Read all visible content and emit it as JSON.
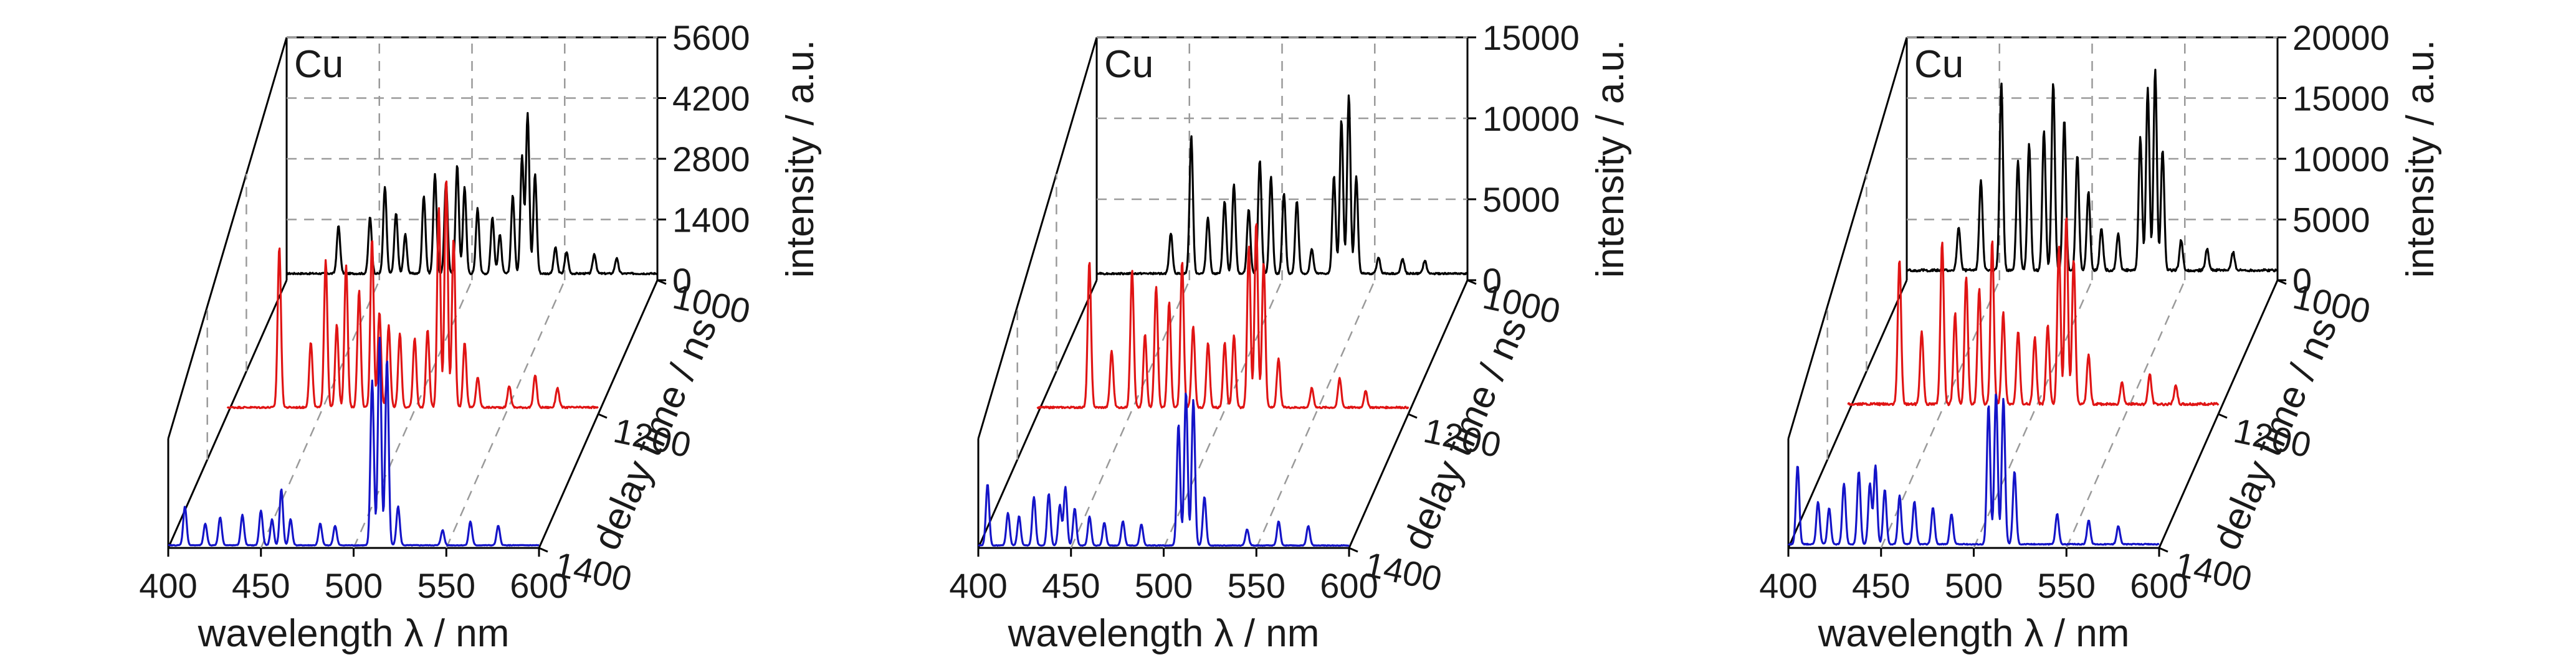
{
  "figure": {
    "background": "#ffffff",
    "axis_color": "#000000",
    "grid_color": "#9a9a9a"
  },
  "chart_data": [
    {
      "type": "line",
      "title": "Cu",
      "xlabel": "wavelength λ / nm",
      "ylabel": "intensity / a.u.",
      "zlabel": "delay time / ns",
      "xlim": [
        400,
        600
      ],
      "ylim": [
        0,
        5600
      ],
      "x_ticks": [
        "400",
        "450",
        "500",
        "550",
        "600"
      ],
      "y_ticks": [
        "0",
        "1400",
        "2800",
        "4200",
        "5600"
      ],
      "z_ticks": [
        "1000",
        "1200",
        "1400"
      ],
      "grid": true,
      "series": [
        {
          "delay": 1000,
          "color": "#000000",
          "baseline": 150,
          "peaks": [
            [
              428,
              1100
            ],
            [
              445,
              1300
            ],
            [
              453,
              2000
            ],
            [
              459,
              1400
            ],
            [
              464,
              900
            ],
            [
              474,
              1800
            ],
            [
              480,
              2300
            ],
            [
              486,
              2100
            ],
            [
              492,
              2500
            ],
            [
              496,
              2000
            ],
            [
              503,
              1500
            ],
            [
              511,
              1300
            ],
            [
              515,
              900
            ],
            [
              522,
              1800
            ],
            [
              527,
              2700
            ],
            [
              530,
              3700
            ],
            [
              534,
              2300
            ],
            [
              545,
              600
            ],
            [
              551,
              500
            ],
            [
              566,
              450
            ],
            [
              578,
              350
            ]
          ]
        },
        {
          "delay": 1200,
          "color": "#e01414",
          "baseline": 150,
          "peaks": [
            [
              428,
              3700
            ],
            [
              445,
              1500
            ],
            [
              453,
              3400
            ],
            [
              459,
              1900
            ],
            [
              464,
              3300
            ],
            [
              471,
              2700
            ],
            [
              478,
              3900
            ],
            [
              482,
              2200
            ],
            [
              487,
              1900
            ],
            [
              493,
              1700
            ],
            [
              501,
              1600
            ],
            [
              508,
              1800
            ],
            [
              514,
              4600
            ],
            [
              518,
              5300
            ],
            [
              522,
              3900
            ],
            [
              528,
              1500
            ],
            [
              535,
              700
            ],
            [
              552,
              500
            ],
            [
              566,
              750
            ],
            [
              578,
              450
            ]
          ]
        },
        {
          "delay": 1400,
          "color": "#1414c8",
          "baseline": 60,
          "peaks": [
            [
              409,
              900
            ],
            [
              420,
              500
            ],
            [
              428,
              650
            ],
            [
              440,
              700
            ],
            [
              450,
              800
            ],
            [
              456,
              600
            ],
            [
              461,
              1300
            ],
            [
              466,
              600
            ],
            [
              482,
              500
            ],
            [
              490,
              450
            ],
            [
              510,
              3800
            ],
            [
              514,
              4800
            ],
            [
              518,
              4300
            ],
            [
              524,
              900
            ],
            [
              548,
              350
            ],
            [
              563,
              550
            ],
            [
              578,
              450
            ]
          ]
        }
      ]
    },
    {
      "type": "line",
      "title": "Cu",
      "xlabel": "wavelength λ / nm",
      "ylabel": "intensity / a.u.",
      "zlabel": "delay time / ns",
      "xlim": [
        400,
        600
      ],
      "ylim": [
        0,
        15000
      ],
      "x_ticks": [
        "400",
        "450",
        "500",
        "550",
        "600"
      ],
      "y_ticks": [
        "0",
        "5000",
        "10000",
        "15000"
      ],
      "z_ticks": [
        "1000",
        "1200",
        "1400"
      ],
      "grid": true,
      "series": [
        {
          "delay": 1000,
          "color": "#000000",
          "baseline": 400,
          "peaks": [
            [
              440,
              2500
            ],
            [
              451,
              8500
            ],
            [
              460,
              3500
            ],
            [
              469,
              4500
            ],
            [
              474,
              5500
            ],
            [
              482,
              4000
            ],
            [
              488,
              7000
            ],
            [
              494,
              6000
            ],
            [
              501,
              5000
            ],
            [
              508,
              4500
            ],
            [
              516,
              1500
            ],
            [
              528,
              6000
            ],
            [
              532,
              9500
            ],
            [
              536,
              11000
            ],
            [
              540,
              6000
            ],
            [
              552,
              1000
            ],
            [
              565,
              900
            ],
            [
              577,
              800
            ]
          ]
        },
        {
          "delay": 1200,
          "color": "#e01414",
          "baseline": 400,
          "peaks": [
            [
              428,
              9000
            ],
            [
              440,
              3500
            ],
            [
              451,
              8500
            ],
            [
              458,
              4500
            ],
            [
              464,
              7500
            ],
            [
              471,
              6500
            ],
            [
              478,
              9000
            ],
            [
              484,
              5000
            ],
            [
              492,
              4000
            ],
            [
              501,
              4000
            ],
            [
              506,
              4500
            ],
            [
              514,
              10000
            ],
            [
              518,
              11500
            ],
            [
              522,
              9000
            ],
            [
              530,
              3000
            ],
            [
              548,
              1200
            ],
            [
              563,
              1800
            ],
            [
              577,
              1000
            ]
          ]
        },
        {
          "delay": 1400,
          "color": "#1414c8",
          "baseline": 150,
          "peaks": [
            [
              405,
              3800
            ],
            [
              416,
              2000
            ],
            [
              422,
              1800
            ],
            [
              430,
              3000
            ],
            [
              438,
              3200
            ],
            [
              444,
              2500
            ],
            [
              447,
              3600
            ],
            [
              452,
              2300
            ],
            [
              460,
              1800
            ],
            [
              468,
              1400
            ],
            [
              478,
              1500
            ],
            [
              488,
              1300
            ],
            [
              508,
              7500
            ],
            [
              512,
              9500
            ],
            [
              516,
              9000
            ],
            [
              522,
              3000
            ],
            [
              545,
              1000
            ],
            [
              562,
              1500
            ],
            [
              578,
              1200
            ]
          ]
        }
      ]
    },
    {
      "type": "line",
      "title": "Cu",
      "xlabel": "wavelength λ / nm",
      "ylabel": "intensity / a.u.",
      "zlabel": "delay time / ns",
      "xlim": [
        400,
        600
      ],
      "ylim": [
        0,
        20000
      ],
      "x_ticks": [
        "400",
        "450",
        "500",
        "550",
        "600"
      ],
      "y_ticks": [
        "0",
        "5000",
        "10000",
        "15000",
        "20000"
      ],
      "z_ticks": [
        "1000",
        "1200",
        "1400"
      ],
      "grid": true,
      "series": [
        {
          "delay": 1000,
          "color": "#000000",
          "baseline": 800,
          "peaks": [
            [
              428,
              3500
            ],
            [
              440,
              7500
            ],
            [
              451,
              15500
            ],
            [
              460,
              9000
            ],
            [
              466,
              10500
            ],
            [
              474,
              11500
            ],
            [
              479,
              15500
            ],
            [
              485,
              12500
            ],
            [
              492,
              9500
            ],
            [
              498,
              6500
            ],
            [
              505,
              3500
            ],
            [
              514,
              3000
            ],
            [
              526,
              11000
            ],
            [
              530,
              15000
            ],
            [
              534,
              16500
            ],
            [
              538,
              10000
            ],
            [
              548,
              2500
            ],
            [
              562,
              1800
            ],
            [
              576,
              1500
            ]
          ]
        },
        {
          "delay": 1200,
          "color": "#e01414",
          "baseline": 800,
          "peaks": [
            [
              428,
              12000
            ],
            [
              440,
              6000
            ],
            [
              451,
              13500
            ],
            [
              458,
              7500
            ],
            [
              464,
              10500
            ],
            [
              471,
              9500
            ],
            [
              478,
              13500
            ],
            [
              484,
              7500
            ],
            [
              492,
              6000
            ],
            [
              501,
              5500
            ],
            [
              508,
              6500
            ],
            [
              514,
              13000
            ],
            [
              518,
              15500
            ],
            [
              522,
              12000
            ],
            [
              530,
              4000
            ],
            [
              548,
              1800
            ],
            [
              563,
              2500
            ],
            [
              577,
              1500
            ]
          ]
        },
        {
          "delay": 1400,
          "color": "#1414c8",
          "baseline": 300,
          "peaks": [
            [
              405,
              6500
            ],
            [
              416,
              3500
            ],
            [
              422,
              3000
            ],
            [
              430,
              5000
            ],
            [
              438,
              6000
            ],
            [
              444,
              5000
            ],
            [
              447,
              6500
            ],
            [
              452,
              4500
            ],
            [
              460,
              4000
            ],
            [
              468,
              3500
            ],
            [
              478,
              3000
            ],
            [
              488,
              2500
            ],
            [
              508,
              11500
            ],
            [
              512,
              12500
            ],
            [
              516,
              12000
            ],
            [
              522,
              6000
            ],
            [
              545,
              2500
            ],
            [
              562,
              2000
            ],
            [
              578,
              1500
            ]
          ]
        }
      ]
    }
  ]
}
